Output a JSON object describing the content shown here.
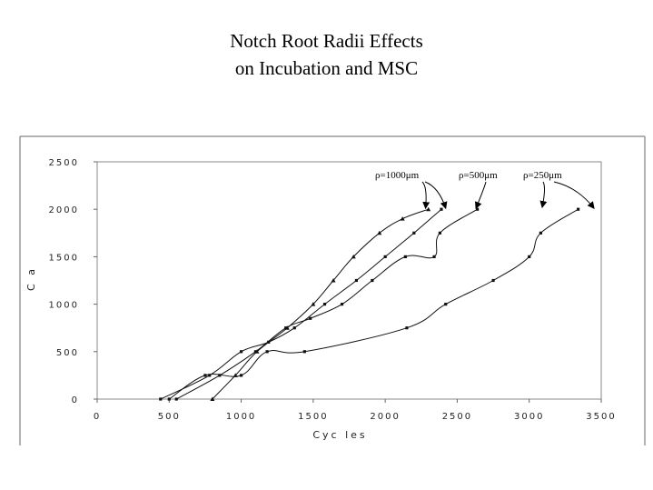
{
  "title_lines": [
    "Notch Root Radii Effects",
    "on Incubation and MSC"
  ],
  "chart_data": {
    "type": "line",
    "title": "Notch Root Radii Effects on Incubation and MSC",
    "xlabel": "Cyc les",
    "ylabel": "C a",
    "xlim": [
      0,
      3500
    ],
    "ylim": [
      0,
      2500
    ],
    "x_ticks": [
      "0",
      "500",
      "1000",
      "1500",
      "2000",
      "2500",
      "3000",
      "3500"
    ],
    "y_ticks": [
      "0",
      "500",
      "1000",
      "1500",
      "2000",
      "2500"
    ],
    "grid": false,
    "annotations": [
      {
        "text": "ρ=1000μm",
        "points_to": [
          2380,
          2020
        ]
      },
      {
        "text": "ρ=500μm",
        "points_to": [
          2630,
          2000
        ]
      },
      {
        "text": "ρ=250μm",
        "points_to": [
          3100,
          2020
        ]
      },
      {
        "text": "",
        "points_to": [
          3450,
          2020
        ]
      }
    ],
    "series": [
      {
        "values_x": [
          800,
          960,
          1110,
          1320,
          1500,
          1640,
          1780,
          1960,
          2120,
          2300
        ],
        "values_y": [
          0,
          250,
          500,
          750,
          1000,
          1250,
          1500,
          1750,
          1900,
          2000
        ]
      },
      {
        "values_x": [
          440,
          780,
          1000,
          1190,
          1370,
          1580,
          1800,
          2000,
          2200,
          2390
        ],
        "values_y": [
          0,
          250,
          500,
          600,
          750,
          1000,
          1250,
          1500,
          1750,
          2000
        ]
      },
      {
        "values_x": [
          550,
          850,
          1100,
          1310,
          1480,
          1700,
          1910,
          2140,
          2340,
          2380,
          2640
        ],
        "values_y": [
          0,
          250,
          500,
          750,
          850,
          1000,
          1250,
          1500,
          1500,
          1750,
          2000
        ]
      },
      {
        "values_x": [
          500,
          750,
          1000,
          1180,
          1440,
          2150,
          2420,
          2750,
          3000,
          3080,
          3340
        ],
        "values_y": [
          0,
          250,
          250,
          500,
          500,
          750,
          1000,
          1250,
          1500,
          1750,
          2000
        ]
      }
    ]
  }
}
